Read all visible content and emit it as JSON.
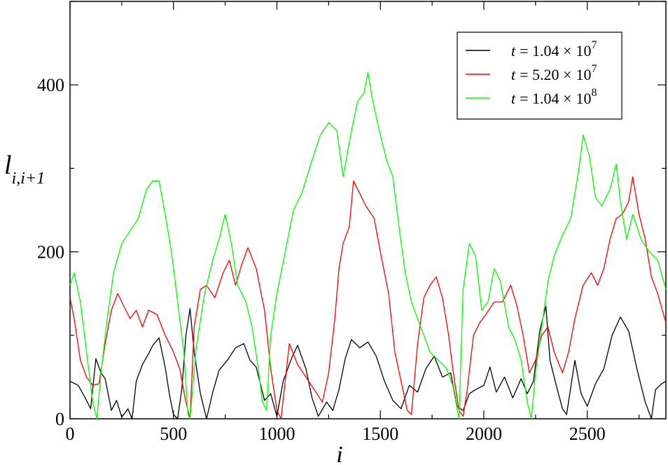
{
  "chart_data": {
    "type": "line",
    "xlabel": "i",
    "ylabel_main": "l",
    "ylabel_sub": "i,i+1",
    "xlim": [
      0,
      2880
    ],
    "ylim": [
      0,
      500
    ],
    "xticks": [
      0,
      500,
      1000,
      1500,
      2000,
      2500
    ],
    "yticks": [
      0,
      200,
      400
    ],
    "grid": false,
    "legend_position": "top-right",
    "series": [
      {
        "name": "t = 1.04 × 10^7",
        "label_var": "t",
        "label_mantissa": "= 1.04 ×",
        "label_base": "10",
        "label_exp": "7",
        "color": "#000000",
        "points": [
          [
            0,
            45
          ],
          [
            40,
            40
          ],
          [
            80,
            22
          ],
          [
            100,
            12
          ],
          [
            125,
            72
          ],
          [
            150,
            55
          ],
          [
            170,
            48
          ],
          [
            200,
            10
          ],
          [
            225,
            22
          ],
          [
            250,
            2
          ],
          [
            280,
            12
          ],
          [
            300,
            0
          ],
          [
            320,
            45
          ],
          [
            350,
            65
          ],
          [
            380,
            78
          ],
          [
            400,
            88
          ],
          [
            430,
            97
          ],
          [
            460,
            62
          ],
          [
            480,
            30
          ],
          [
            500,
            5
          ],
          [
            520,
            0
          ],
          [
            540,
            35
          ],
          [
            560,
            100
          ],
          [
            580,
            132
          ],
          [
            600,
            80
          ],
          [
            630,
            30
          ],
          [
            660,
            0
          ],
          [
            690,
            32
          ],
          [
            720,
            58
          ],
          [
            760,
            70
          ],
          [
            800,
            85
          ],
          [
            840,
            90
          ],
          [
            870,
            70
          ],
          [
            900,
            62
          ],
          [
            940,
            22
          ],
          [
            970,
            30
          ],
          [
            1000,
            3
          ],
          [
            1030,
            45
          ],
          [
            1070,
            72
          ],
          [
            1100,
            88
          ],
          [
            1140,
            60
          ],
          [
            1170,
            25
          ],
          [
            1200,
            3
          ],
          [
            1240,
            20
          ],
          [
            1270,
            10
          ],
          [
            1300,
            35
          ],
          [
            1330,
            72
          ],
          [
            1360,
            95
          ],
          [
            1400,
            85
          ],
          [
            1440,
            92
          ],
          [
            1480,
            75
          ],
          [
            1520,
            45
          ],
          [
            1560,
            22
          ],
          [
            1600,
            12
          ],
          [
            1640,
            40
          ],
          [
            1680,
            32
          ],
          [
            1720,
            60
          ],
          [
            1760,
            75
          ],
          [
            1800,
            50
          ],
          [
            1840,
            55
          ],
          [
            1870,
            15
          ],
          [
            1900,
            10
          ],
          [
            1930,
            30
          ],
          [
            1960,
            35
          ],
          [
            2000,
            40
          ],
          [
            2030,
            62
          ],
          [
            2060,
            32
          ],
          [
            2100,
            50
          ],
          [
            2140,
            25
          ],
          [
            2180,
            48
          ],
          [
            2210,
            30
          ],
          [
            2240,
            45
          ],
          [
            2270,
            105
          ],
          [
            2300,
            135
          ],
          [
            2320,
            70
          ],
          [
            2350,
            40
          ],
          [
            2380,
            12
          ],
          [
            2400,
            5
          ],
          [
            2440,
            70
          ],
          [
            2470,
            30
          ],
          [
            2500,
            15
          ],
          [
            2540,
            42
          ],
          [
            2580,
            60
          ],
          [
            2620,
            100
          ],
          [
            2660,
            122
          ],
          [
            2700,
            105
          ],
          [
            2740,
            60
          ],
          [
            2780,
            20
          ],
          [
            2810,
            0
          ],
          [
            2830,
            35
          ],
          [
            2860,
            42
          ],
          [
            2880,
            45
          ]
        ]
      },
      {
        "name": "t = 5.20 × 10^7",
        "label_var": "t",
        "label_mantissa": "= 5.20 ×",
        "label_base": "10",
        "label_exp": "7",
        "color": "#ff0000",
        "points": [
          [
            0,
            145
          ],
          [
            20,
            120
          ],
          [
            50,
            70
          ],
          [
            80,
            50
          ],
          [
            110,
            40
          ],
          [
            140,
            42
          ],
          [
            170,
            90
          ],
          [
            200,
            130
          ],
          [
            230,
            150
          ],
          [
            260,
            135
          ],
          [
            290,
            120
          ],
          [
            320,
            130
          ],
          [
            350,
            110
          ],
          [
            380,
            130
          ],
          [
            420,
            125
          ],
          [
            460,
            100
          ],
          [
            500,
            80
          ],
          [
            530,
            60
          ],
          [
            560,
            20
          ],
          [
            580,
            0
          ],
          [
            600,
            110
          ],
          [
            630,
            155
          ],
          [
            660,
            160
          ],
          [
            700,
            145
          ],
          [
            740,
            175
          ],
          [
            770,
            190
          ],
          [
            800,
            160
          ],
          [
            830,
            185
          ],
          [
            860,
            205
          ],
          [
            900,
            180
          ],
          [
            940,
            130
          ],
          [
            970,
            60
          ],
          [
            1000,
            10
          ],
          [
            1020,
            0
          ],
          [
            1060,
            90
          ],
          [
            1100,
            65
          ],
          [
            1140,
            50
          ],
          [
            1180,
            35
          ],
          [
            1220,
            20
          ],
          [
            1250,
            55
          ],
          [
            1280,
            120
          ],
          [
            1300,
            180
          ],
          [
            1320,
            210
          ],
          [
            1350,
            230
          ],
          [
            1370,
            285
          ],
          [
            1400,
            270
          ],
          [
            1430,
            255
          ],
          [
            1470,
            240
          ],
          [
            1500,
            200
          ],
          [
            1540,
            150
          ],
          [
            1570,
            80
          ],
          [
            1600,
            45
          ],
          [
            1630,
            10
          ],
          [
            1650,
            5
          ],
          [
            1680,
            90
          ],
          [
            1710,
            145
          ],
          [
            1740,
            160
          ],
          [
            1770,
            170
          ],
          [
            1800,
            145
          ],
          [
            1830,
            100
          ],
          [
            1850,
            60
          ],
          [
            1880,
            10
          ],
          [
            1900,
            3
          ],
          [
            1920,
            35
          ],
          [
            1950,
            100
          ],
          [
            1980,
            115
          ],
          [
            2010,
            125
          ],
          [
            2050,
            140
          ],
          [
            2090,
            140
          ],
          [
            2130,
            160
          ],
          [
            2160,
            135
          ],
          [
            2190,
            100
          ],
          [
            2220,
            55
          ],
          [
            2250,
            70
          ],
          [
            2280,
            100
          ],
          [
            2310,
            110
          ],
          [
            2340,
            80
          ],
          [
            2380,
            55
          ],
          [
            2410,
            80
          ],
          [
            2440,
            120
          ],
          [
            2480,
            160
          ],
          [
            2520,
            175
          ],
          [
            2550,
            160
          ],
          [
            2580,
            180
          ],
          [
            2610,
            215
          ],
          [
            2640,
            240
          ],
          [
            2670,
            245
          ],
          [
            2700,
            260
          ],
          [
            2720,
            290
          ],
          [
            2750,
            245
          ],
          [
            2780,
            215
          ],
          [
            2810,
            170
          ],
          [
            2840,
            150
          ],
          [
            2880,
            115
          ]
        ]
      },
      {
        "name": "t = 1.04 × 10^8",
        "label_var": "t",
        "label_mantissa": "= 1.04 ×",
        "label_base": "10",
        "label_exp": "8",
        "color": "#00ff00",
        "points": [
          [
            0,
            160
          ],
          [
            20,
            175
          ],
          [
            50,
            140
          ],
          [
            80,
            80
          ],
          [
            110,
            20
          ],
          [
            130,
            0
          ],
          [
            150,
            55
          ],
          [
            180,
            120
          ],
          [
            210,
            175
          ],
          [
            250,
            210
          ],
          [
            290,
            225
          ],
          [
            330,
            240
          ],
          [
            370,
            275
          ],
          [
            400,
            285
          ],
          [
            430,
            285
          ],
          [
            460,
            245
          ],
          [
            490,
            200
          ],
          [
            520,
            140
          ],
          [
            550,
            80
          ],
          [
            570,
            5
          ],
          [
            580,
            0
          ],
          [
            610,
            85
          ],
          [
            650,
            150
          ],
          [
            690,
            190
          ],
          [
            720,
            215
          ],
          [
            750,
            245
          ],
          [
            780,
            210
          ],
          [
            810,
            160
          ],
          [
            850,
            140
          ],
          [
            880,
            110
          ],
          [
            910,
            60
          ],
          [
            930,
            20
          ],
          [
            950,
            10
          ],
          [
            970,
            100
          ],
          [
            1000,
            150
          ],
          [
            1040,
            200
          ],
          [
            1080,
            250
          ],
          [
            1120,
            270
          ],
          [
            1170,
            310
          ],
          [
            1210,
            340
          ],
          [
            1250,
            355
          ],
          [
            1290,
            345
          ],
          [
            1320,
            290
          ],
          [
            1360,
            345
          ],
          [
            1390,
            380
          ],
          [
            1420,
            390
          ],
          [
            1440,
            415
          ],
          [
            1460,
            385
          ],
          [
            1490,
            350
          ],
          [
            1530,
            310
          ],
          [
            1560,
            290
          ],
          [
            1590,
            230
          ],
          [
            1620,
            175
          ],
          [
            1650,
            140
          ],
          [
            1680,
            120
          ],
          [
            1710,
            100
          ],
          [
            1740,
            80
          ],
          [
            1780,
            70
          ],
          [
            1820,
            60
          ],
          [
            1850,
            40
          ],
          [
            1880,
            0
          ],
          [
            1900,
            155
          ],
          [
            1930,
            210
          ],
          [
            1960,
            195
          ],
          [
            1990,
            130
          ],
          [
            2020,
            140
          ],
          [
            2050,
            180
          ],
          [
            2080,
            165
          ],
          [
            2120,
            110
          ],
          [
            2150,
            95
          ],
          [
            2180,
            70
          ],
          [
            2210,
            20
          ],
          [
            2230,
            0
          ],
          [
            2250,
            55
          ],
          [
            2280,
            110
          ],
          [
            2310,
            165
          ],
          [
            2340,
            195
          ],
          [
            2380,
            220
          ],
          [
            2420,
            240
          ],
          [
            2460,
            300
          ],
          [
            2480,
            340
          ],
          [
            2510,
            315
          ],
          [
            2540,
            265
          ],
          [
            2570,
            255
          ],
          [
            2610,
            275
          ],
          [
            2640,
            305
          ],
          [
            2660,
            260
          ],
          [
            2690,
            215
          ],
          [
            2720,
            245
          ],
          [
            2760,
            215
          ],
          [
            2800,
            200
          ],
          [
            2840,
            190
          ],
          [
            2880,
            155
          ]
        ]
      }
    ]
  }
}
